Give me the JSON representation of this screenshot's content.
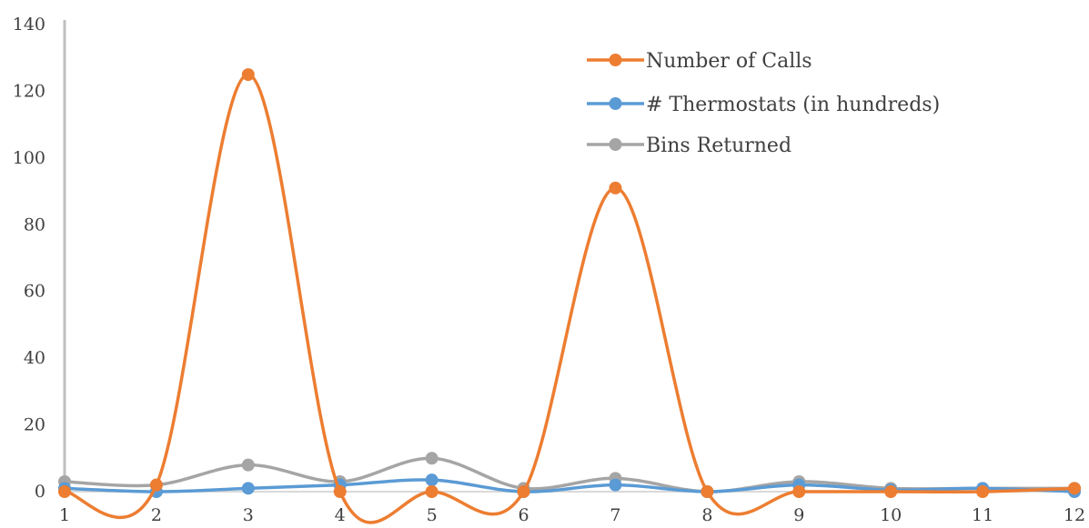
{
  "chart_data": {
    "type": "line",
    "smooth": true,
    "x": [
      1,
      2,
      3,
      4,
      5,
      6,
      7,
      8,
      9,
      10,
      11,
      12
    ],
    "ylim": [
      0,
      140
    ],
    "yticks": [
      0,
      20,
      40,
      60,
      80,
      100,
      120,
      140
    ],
    "grid": false,
    "legend_position": "top-right",
    "series": [
      {
        "name": "Number of Calls",
        "color": "#ED7D31",
        "values": [
          0,
          2,
          125,
          0,
          0,
          0,
          91,
          0,
          0,
          0,
          0,
          1
        ]
      },
      {
        "name": "# Thermostats (in hundreds)",
        "color": "#5B9BD5",
        "values": [
          1,
          0,
          1,
          2,
          3.5,
          0,
          2,
          0,
          2,
          0.5,
          1,
          0
        ]
      },
      {
        "name": "Bins Returned",
        "color": "#A5A5A5",
        "values": [
          3,
          2,
          8,
          3,
          10,
          1,
          4,
          0,
          3,
          1,
          1,
          1
        ]
      }
    ]
  }
}
